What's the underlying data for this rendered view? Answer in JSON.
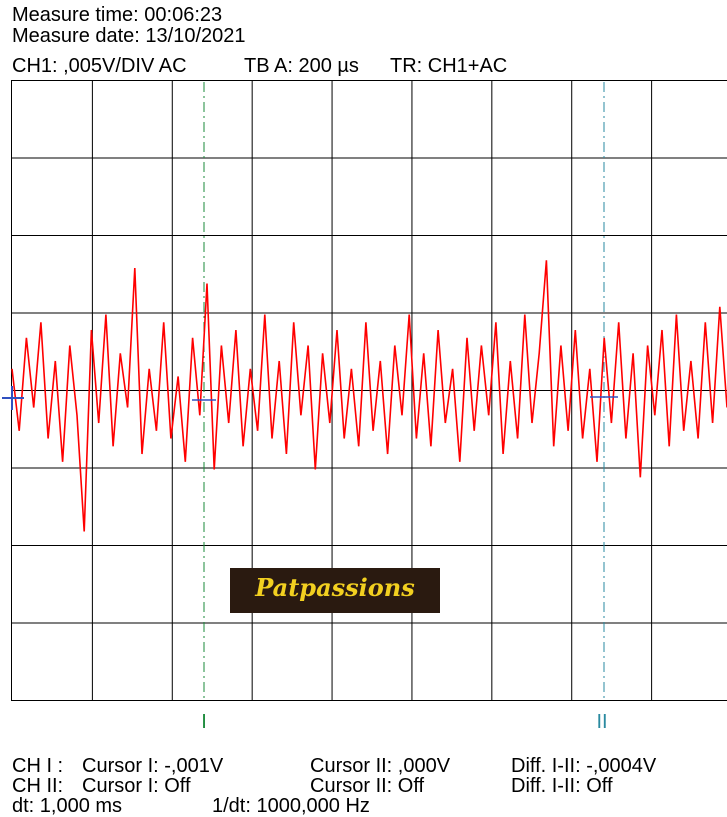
{
  "header": {
    "measure_time": "Measure time: 00:06:23",
    "measure_date": "Measure date: 13/10/2021",
    "channel": "CH1: ,005V/DIV AC",
    "timebase": "TB A: 200 µs",
    "trigger": "TR: CH1+AC"
  },
  "cursor_labels": [
    "I",
    "II"
  ],
  "watermark": "Patpassions",
  "trace": {
    "color": "#ff0000",
    "values": [
      0.3,
      -0.5,
      0.7,
      -0.2,
      0.9,
      -0.6,
      0.4,
      -0.9,
      0.6,
      -0.3,
      -1.8,
      0.8,
      -0.4,
      1.0,
      -0.7,
      0.5,
      -0.2,
      1.6,
      -0.8,
      0.3,
      -0.5,
      0.9,
      -0.6,
      0.2,
      -0.9,
      0.7,
      -0.3,
      1.4,
      -1.0,
      0.6,
      -0.4,
      0.8,
      -0.7,
      0.3,
      -0.5,
      1.0,
      -0.6,
      0.4,
      -0.8,
      0.9,
      -0.3,
      0.6,
      -1.0,
      0.5,
      -0.4,
      0.8,
      -0.6,
      0.3,
      -0.7,
      0.9,
      -0.5,
      0.4,
      -0.8,
      0.6,
      -0.3,
      1.0,
      -0.6,
      0.5,
      -0.7,
      0.8,
      -0.4,
      0.3,
      -0.9,
      0.7,
      -0.5,
      0.6,
      -0.3,
      0.9,
      -0.8,
      0.4,
      -0.6,
      1.0,
      -0.4,
      0.5,
      1.7,
      -0.7,
      0.6,
      -0.5,
      0.8,
      -0.6,
      0.3,
      -0.9,
      0.7,
      -0.4,
      0.9,
      -0.6,
      0.5,
      -1.1,
      0.6,
      -0.3,
      0.8,
      -0.7,
      1.0,
      -0.5,
      0.4,
      -0.6,
      0.9,
      -0.4,
      1.1,
      -0.2
    ]
  },
  "footer": {
    "rows": [
      [
        "CH I :",
        "Cursor I: -,001V",
        "Cursor II: ,000V",
        "Diff. I-II: -,0004V"
      ],
      [
        "CH II:",
        "Cursor I: Off",
        "Cursor II: Off",
        "Diff. I-II: Off"
      ],
      [
        "dt: 1,000 ms",
        "1/dt: 1000,000 Hz"
      ]
    ]
  }
}
